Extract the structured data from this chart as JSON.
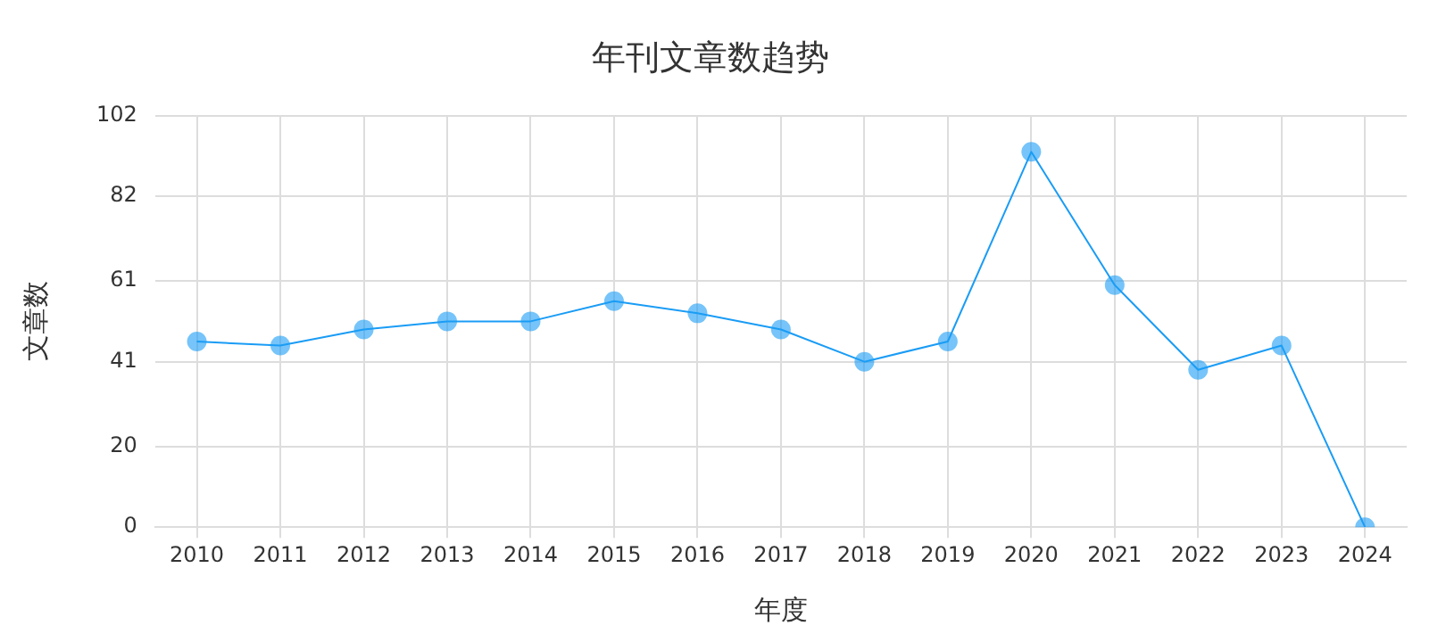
{
  "chart_data": {
    "type": "line",
    "title": "年刊文章数趋势",
    "xlabel": "年度",
    "ylabel": "文章数",
    "categories": [
      "2010",
      "2011",
      "2012",
      "2013",
      "2014",
      "2015",
      "2016",
      "2017",
      "2018",
      "2019",
      "2020",
      "2021",
      "2022",
      "2023",
      "2024"
    ],
    "series": [
      {
        "color": "#1a9cf5",
        "values": [
          46,
          45,
          49,
          51,
          51,
          56,
          53,
          49,
          41,
          46,
          93,
          60,
          39,
          45,
          0
        ]
      }
    ],
    "ylim": [
      0,
      102
    ],
    "yticks": [
      0,
      20,
      41,
      61,
      82,
      102
    ],
    "grid": true,
    "marker": "circle",
    "line_style": "solid",
    "legend": false
  }
}
